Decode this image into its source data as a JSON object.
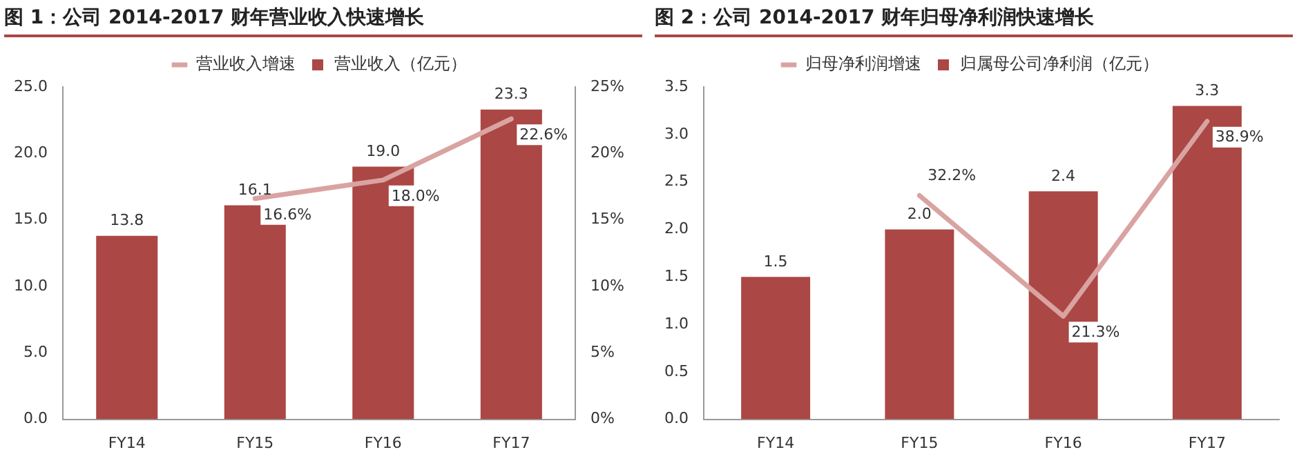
{
  "chart_data": [
    {
      "type": "bar",
      "title": "图 1：公司 2014-2017 财年营业收入快速增长",
      "categories": [
        "FY14",
        "FY15",
        "FY16",
        "FY17"
      ],
      "series": [
        {
          "name": "营业收入（亿元）",
          "color": "#ab4744",
          "values": [
            13.8,
            16.1,
            19.0,
            23.3
          ],
          "value_labels": [
            "13.8",
            "16.1",
            "19.0",
            "23.3"
          ]
        },
        {
          "name": "营业收入增速",
          "type": "line",
          "axis": "y2",
          "color": "#d9a3a2",
          "values": [
            null,
            16.6,
            18.0,
            22.6
          ],
          "value_labels": [
            null,
            "16.6%",
            "18.0%",
            "22.6%"
          ]
        }
      ],
      "ylim": [
        0,
        25
      ],
      "yticks": [
        {
          "value": 0,
          "label": "0.0"
        },
        {
          "value": 5,
          "label": "5.0"
        },
        {
          "value": 10,
          "label": "10.0"
        },
        {
          "value": 15,
          "label": "15.0"
        },
        {
          "value": 20,
          "label": "20.0"
        },
        {
          "value": 25,
          "label": "25.0"
        }
      ],
      "y2lim": [
        0,
        25
      ],
      "y2ticks": [
        {
          "value": 0,
          "label": "0%"
        },
        {
          "value": 5,
          "label": "5%"
        },
        {
          "value": 10,
          "label": "10%"
        },
        {
          "value": 15,
          "label": "15%"
        },
        {
          "value": 20,
          "label": "20%"
        },
        {
          "value": 25,
          "label": "25%"
        }
      ],
      "legend": "top",
      "grid": false,
      "marker": "none",
      "line_style": "solid"
    },
    {
      "type": "bar",
      "title": "图 2：公司 2014-2017 财年归母净利润快速增长",
      "categories": [
        "FY14",
        "FY15",
        "FY16",
        "FY17"
      ],
      "series": [
        {
          "name": "归属母公司净利润（亿元）",
          "color": "#ab4744",
          "values": [
            1.5,
            2.0,
            2.4,
            3.3
          ],
          "value_labels": [
            "1.5",
            "2.0",
            "2.4",
            "3.3"
          ]
        },
        {
          "name": "归母净利润增速",
          "type": "line",
          "axis": "y2",
          "color": "#d9a3a2",
          "values": [
            null,
            32.2,
            21.3,
            38.9
          ],
          "value_labels": [
            null,
            "32.2%",
            "21.3%",
            "38.9%"
          ]
        }
      ],
      "ylim": [
        0,
        3.5
      ],
      "yticks": [
        {
          "value": 0,
          "label": "0.0"
        },
        {
          "value": 0.5,
          "label": "0.5"
        },
        {
          "value": 1,
          "label": "1.0"
        },
        {
          "value": 1.5,
          "label": "1.5"
        },
        {
          "value": 2,
          "label": "2.0"
        },
        {
          "value": 2.5,
          "label": "2.5"
        },
        {
          "value": 3,
          "label": "3.0"
        },
        {
          "value": 3.5,
          "label": "3.5"
        }
      ],
      "y2lim": [
        12,
        42
      ],
      "legend": "top",
      "grid": false,
      "marker": "none",
      "line_style": "solid"
    }
  ]
}
